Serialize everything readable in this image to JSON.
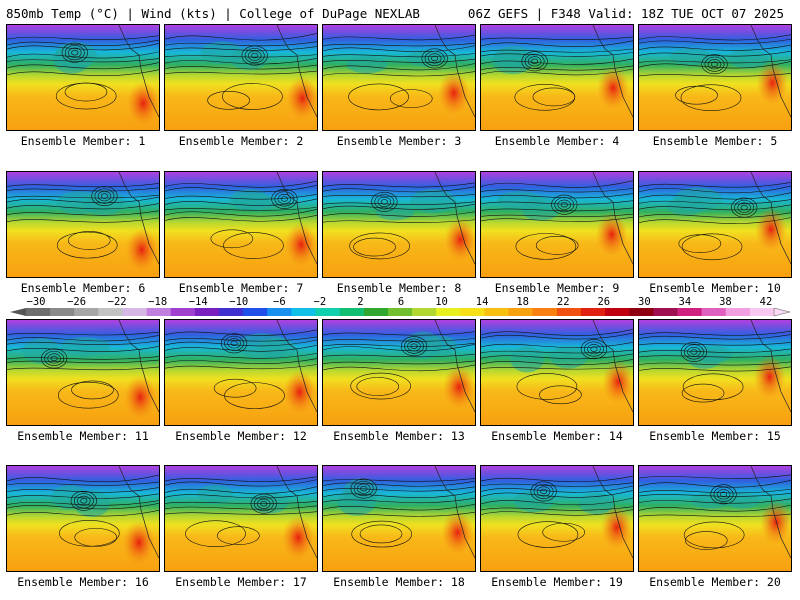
{
  "header": {
    "left": "850mb Temp (°C) | Wind (kts) | College of DuPage NEXLAB",
    "right": "06Z GEFS | F348 Valid: 18Z TUE OCT 07 2025"
  },
  "members": [
    "Ensemble Member: 1",
    "Ensemble Member: 2",
    "Ensemble Member: 3",
    "Ensemble Member: 4",
    "Ensemble Member: 5",
    "Ensemble Member: 6",
    "Ensemble Member: 7",
    "Ensemble Member: 8",
    "Ensemble Member: 9",
    "Ensemble Member: 10",
    "Ensemble Member: 11",
    "Ensemble Member: 12",
    "Ensemble Member: 13",
    "Ensemble Member: 14",
    "Ensemble Member: 15",
    "Ensemble Member: 16",
    "Ensemble Member: 17",
    "Ensemble Member: 18",
    "Ensemble Member: 19",
    "Ensemble Member: 20"
  ],
  "colorbar": {
    "ticks": [
      "−30",
      "−26",
      "−22",
      "−18",
      "−14",
      "−10",
      "−6",
      "−2",
      "2",
      "6",
      "10",
      "14",
      "18",
      "22",
      "26",
      "30",
      "34",
      "38",
      "42"
    ],
    "colors": [
      "#6e6e6e",
      "#8a8a8a",
      "#a6a6a6",
      "#c3c3c3",
      "#d6b8e6",
      "#c080e0",
      "#a040d0",
      "#7a20c0",
      "#4030d0",
      "#2050e8",
      "#1890f0",
      "#10c0e8",
      "#10d0b0",
      "#10c070",
      "#30a830",
      "#70c030",
      "#b0d830",
      "#e8f020",
      "#f8e018",
      "#f8c010",
      "#f8a010",
      "#f88010",
      "#f05010",
      "#e02010",
      "#c00010",
      "#900010",
      "#a01050",
      "#d02080",
      "#e060c0",
      "#f0a0e0",
      "#f8c8f0"
    ]
  }
}
